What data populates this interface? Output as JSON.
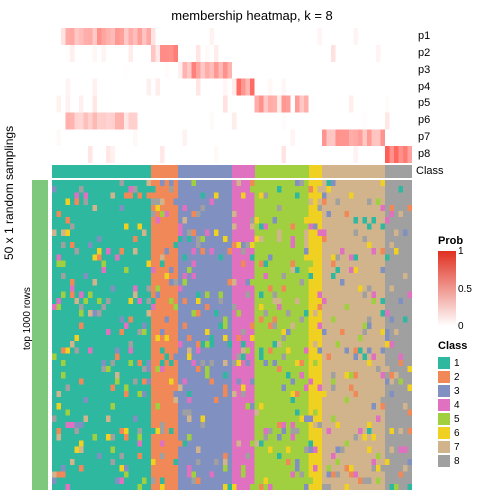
{
  "title": "membership heatmap, k = 8",
  "ylabel_outer": "50 x 1 random samplings",
  "ylabel_inner": "top 1000 rows",
  "top_rows": [
    "p1",
    "p2",
    "p3",
    "p4",
    "p5",
    "p6",
    "p7",
    "p8"
  ],
  "class_label": "Class",
  "prob_legend": {
    "title": "Prob",
    "ticks": [
      {
        "v": "1",
        "p": 0
      },
      {
        "v": "0.5",
        "p": 0.5
      },
      {
        "v": "0",
        "p": 1
      }
    ],
    "grad_top": "#e03020",
    "grad_bot": "#ffffff"
  },
  "class_legend": {
    "title": "Class",
    "items": [
      {
        "l": "1",
        "c": "#2fb8a0"
      },
      {
        "l": "2",
        "c": "#f08858"
      },
      {
        "l": "3",
        "c": "#8090c0"
      },
      {
        "l": "4",
        "c": "#e070c0"
      },
      {
        "l": "5",
        "c": "#a0d040"
      },
      {
        "l": "6",
        "c": "#f0d020"
      },
      {
        "l": "7",
        "c": "#d2b48c"
      },
      {
        "l": "8",
        "c": "#a0a0a0"
      }
    ]
  },
  "n_cols": 80,
  "class_segments": [
    {
      "c": "#2fb8a0",
      "w": 22
    },
    {
      "c": "#f08858",
      "w": 6
    },
    {
      "c": "#8090c0",
      "w": 12
    },
    {
      "c": "#e070c0",
      "w": 5
    },
    {
      "c": "#a0d040",
      "w": 12
    },
    {
      "c": "#f0d020",
      "w": 3
    },
    {
      "c": "#d2b48c",
      "w": 14
    },
    {
      "c": "#a0a0a0",
      "w": 6
    }
  ],
  "top_heat": {
    "bg": "#ffffff",
    "rows": [
      {
        "band": [
          3,
          21
        ],
        "intensity": 0.6
      },
      {
        "band": [
          22,
          27
        ],
        "intensity": 0.7
      },
      {
        "band": [
          28,
          39
        ],
        "intensity": 0.65
      },
      {
        "band": [
          40,
          44
        ],
        "intensity": 0.8
      },
      {
        "band": [
          45,
          56
        ],
        "intensity": 0.6
      },
      {
        "band": [
          3,
          18
        ],
        "intensity": 0.4
      },
      {
        "band": [
          60,
          73
        ],
        "intensity": 0.6
      },
      {
        "band": [
          74,
          79
        ],
        "intensity": 0.85
      }
    ]
  },
  "main_heat": {
    "n_rows": 50,
    "base_bands": [
      {
        "x": 0,
        "w": 22,
        "c": "#2fb8a0"
      },
      {
        "x": 22,
        "w": 6,
        "c": "#f08858"
      },
      {
        "x": 28,
        "w": 12,
        "c": "#8090c0"
      },
      {
        "x": 40,
        "w": 5,
        "c": "#e070c0"
      },
      {
        "x": 45,
        "w": 12,
        "c": "#a0d040"
      },
      {
        "x": 57,
        "w": 3,
        "c": "#f0d020"
      },
      {
        "x": 60,
        "w": 14,
        "c": "#d2b48c"
      },
      {
        "x": 74,
        "w": 6,
        "c": "#a0a0a0"
      }
    ],
    "noise_palette": [
      "#2fb8a0",
      "#f08858",
      "#8090c0",
      "#e070c0",
      "#a0d040",
      "#f0d020",
      "#d2b48c",
      "#a0a0a0"
    ],
    "noise_prob": 0.18,
    "seed": 42
  }
}
